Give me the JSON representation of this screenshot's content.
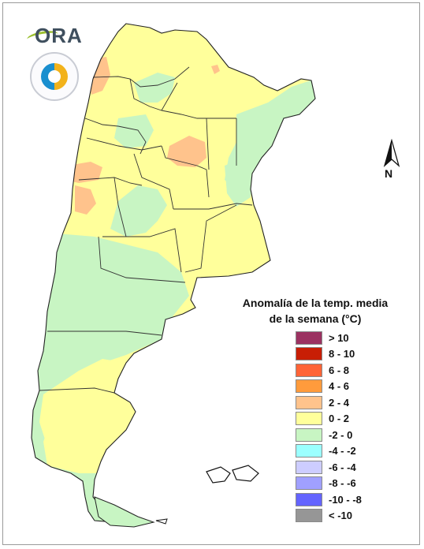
{
  "legend": {
    "title_line1": "Anomalía de la temp. media",
    "title_line2": "de la semana (°C)",
    "items": [
      {
        "label": "> 10",
        "color": "#9b3261"
      },
      {
        "label": "8 - 10",
        "color": "#c81e05"
      },
      {
        "label": "6 - 8",
        "color": "#ff6437"
      },
      {
        "label": "4 - 6",
        "color": "#ff9b3c"
      },
      {
        "label": "2 - 4",
        "color": "#ffc38c"
      },
      {
        "label": "0 - 2",
        "color": "#ffff9b"
      },
      {
        "label": "-2 - 0",
        "color": "#c8f5c3"
      },
      {
        "label": "-4 - -2",
        "color": "#9bffff"
      },
      {
        "label": "-6 - -4",
        "color": "#cdcdff"
      },
      {
        "label": "-8 - -6",
        "color": "#a0a0ff"
      },
      {
        "label": "-10 - -8",
        "color": "#6464ff"
      },
      {
        "label": "< -10",
        "color": "#969696"
      }
    ]
  },
  "north_arrow": {
    "label": "N"
  },
  "logos": {
    "ora_text": "ORA"
  },
  "map_colors": {
    "warm_0_2": "#ffff9b",
    "warm_2_4": "#ffc38c",
    "cool_-2_0": "#c8f5c3",
    "boundary": "#333333"
  }
}
